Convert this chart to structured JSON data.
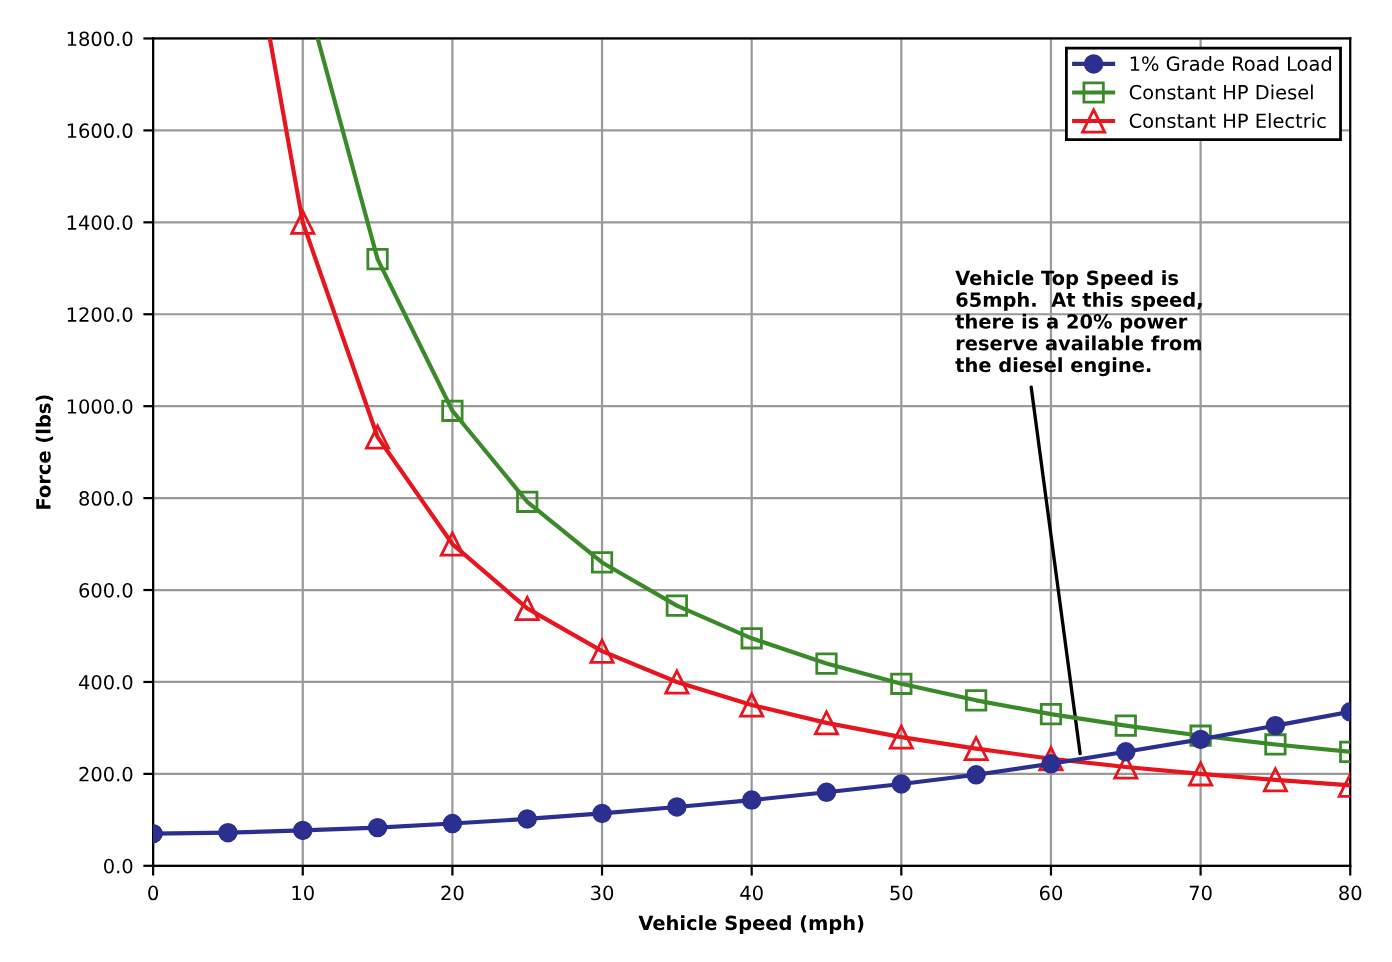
{
  "chart_data": {
    "type": "line",
    "xlabel": "Vehicle Speed (mph)",
    "ylabel": "Force (lbs)",
    "xlim": [
      0,
      80
    ],
    "xticks": [
      0,
      10,
      20,
      30,
      40,
      50,
      60,
      70,
      80
    ],
    "ylim": [
      0,
      1800
    ],
    "yticks": [
      {
        "value": 0,
        "label": "0.0"
      },
      {
        "value": 200,
        "label": "200.0"
      },
      {
        "value": 400,
        "label": "400.0"
      },
      {
        "value": 600,
        "label": "600.0"
      },
      {
        "value": 800,
        "label": "800.0"
      },
      {
        "value": 1000,
        "label": "1000.0"
      },
      {
        "value": 1200,
        "label": "1200.0"
      },
      {
        "value": 1400,
        "label": "1400.0"
      },
      {
        "value": 1600,
        "label": "1600.0"
      },
      {
        "value": 1800,
        "label": "1800.0"
      }
    ],
    "grid": true,
    "legend": "top right",
    "series": [
      {
        "name": "1% Grade Road Load",
        "color": "#2b2f8f",
        "marker": "circle",
        "x": [
          0,
          5,
          10,
          15,
          20,
          25,
          30,
          35,
          40,
          45,
          50,
          55,
          60,
          65,
          70,
          75,
          80
        ],
        "values": [
          70,
          72,
          77,
          83,
          92,
          102,
          114,
          128,
          143,
          160,
          178,
          198,
          222,
          248,
          275,
          305,
          335
        ]
      },
      {
        "name": "Constant HP Diesel",
        "color": "#3a8a2a",
        "marker": "square",
        "x": [
          11,
          15,
          20,
          25,
          30,
          35,
          40,
          45,
          50,
          55,
          60,
          65,
          70,
          75,
          80
        ],
        "values": [
          1800,
          1320,
          990,
          792,
          660,
          566,
          495,
          440,
          396,
          360,
          330,
          305,
          283,
          264,
          248
        ]
      },
      {
        "name": "Constant HP Electric",
        "color": "#e8141e",
        "marker": "triangle",
        "x": [
          7.8,
          10,
          15,
          20,
          25,
          30,
          35,
          40,
          45,
          50,
          55,
          60,
          65,
          70,
          75,
          80
        ],
        "values": [
          1800,
          1400,
          933,
          700,
          560,
          467,
          400,
          350,
          311,
          280,
          255,
          233,
          215,
          200,
          187,
          175
        ]
      }
    ],
    "annotations": [
      {
        "text": "Vehicle Top Speed is\n65mph.  At this speed,\nthere is a 20% power\nreserve available from\nthe diesel engine.",
        "x": 62,
        "y": 232
      }
    ]
  }
}
